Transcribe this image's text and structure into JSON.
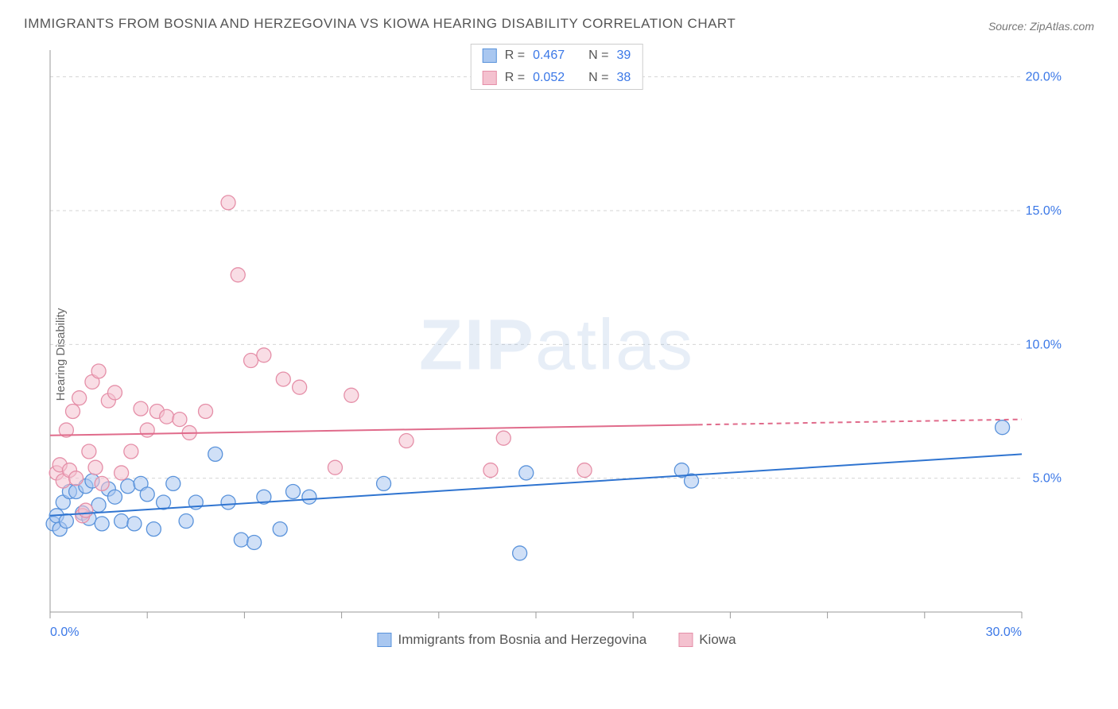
{
  "title": "IMMIGRANTS FROM BOSNIA AND HERZEGOVINA VS KIOWA HEARING DISABILITY CORRELATION CHART",
  "source": "Source: ZipAtlas.com",
  "watermark": {
    "bold": "ZIP",
    "rest": "atlas"
  },
  "ylabel": "Hearing Disability",
  "chart": {
    "type": "scatter",
    "background_color": "#ffffff",
    "grid_color": "#d5d5d5",
    "axis_color": "#999999",
    "xlim": [
      0,
      30
    ],
    "ylim": [
      0,
      21
    ],
    "x_ticks": [
      0,
      3,
      6,
      9,
      12,
      15,
      18,
      21,
      24,
      27,
      30
    ],
    "x_tick_labels": [
      "0.0%",
      "",
      "",
      "",
      "",
      "",
      "",
      "",
      "",
      "",
      "30.0%"
    ],
    "y_grid": [
      5,
      10,
      15,
      20
    ],
    "y_tick_labels": [
      "5.0%",
      "10.0%",
      "15.0%",
      "20.0%"
    ],
    "marker_radius": 9,
    "marker_opacity": 0.55,
    "line_width": 2,
    "series": [
      {
        "name": "Immigrants from Bosnia and Herzegovina",
        "color_fill": "#a9c7f0",
        "color_stroke": "#5a93db",
        "line_color": "#2f74d0",
        "R": "0.467",
        "N": "39",
        "trend": {
          "x1": 0,
          "y1": 3.6,
          "x2": 30,
          "y2": 5.9,
          "solid_until_x": 30
        },
        "points": [
          [
            0.1,
            3.3
          ],
          [
            0.2,
            3.6
          ],
          [
            0.3,
            3.1
          ],
          [
            0.4,
            4.1
          ],
          [
            0.5,
            3.4
          ],
          [
            0.6,
            4.5
          ],
          [
            0.8,
            4.5
          ],
          [
            1.0,
            3.7
          ],
          [
            1.1,
            4.7
          ],
          [
            1.2,
            3.5
          ],
          [
            1.3,
            4.9
          ],
          [
            1.5,
            4.0
          ],
          [
            1.6,
            3.3
          ],
          [
            1.8,
            4.6
          ],
          [
            2.0,
            4.3
          ],
          [
            2.2,
            3.4
          ],
          [
            2.4,
            4.7
          ],
          [
            2.6,
            3.3
          ],
          [
            2.8,
            4.8
          ],
          [
            3.0,
            4.4
          ],
          [
            3.2,
            3.1
          ],
          [
            3.5,
            4.1
          ],
          [
            3.8,
            4.8
          ],
          [
            4.2,
            3.4
          ],
          [
            4.5,
            4.1
          ],
          [
            5.1,
            5.9
          ],
          [
            5.5,
            4.1
          ],
          [
            5.9,
            2.7
          ],
          [
            6.3,
            2.6
          ],
          [
            6.6,
            4.3
          ],
          [
            7.1,
            3.1
          ],
          [
            7.5,
            4.5
          ],
          [
            8.0,
            4.3
          ],
          [
            10.3,
            4.8
          ],
          [
            14.5,
            2.2
          ],
          [
            14.7,
            5.2
          ],
          [
            19.5,
            5.3
          ],
          [
            19.8,
            4.9
          ],
          [
            29.4,
            6.9
          ]
        ]
      },
      {
        "name": "Kiowa",
        "color_fill": "#f4c1cf",
        "color_stroke": "#e58fa8",
        "line_color": "#e06b8b",
        "R": "0.052",
        "N": "38",
        "trend": {
          "x1": 0,
          "y1": 6.6,
          "x2": 30,
          "y2": 7.2,
          "solid_until_x": 20
        },
        "points": [
          [
            0.2,
            5.2
          ],
          [
            0.3,
            5.5
          ],
          [
            0.4,
            4.9
          ],
          [
            0.5,
            6.8
          ],
          [
            0.6,
            5.3
          ],
          [
            0.7,
            7.5
          ],
          [
            0.8,
            5.0
          ],
          [
            0.9,
            8.0
          ],
          [
            1.0,
            3.6
          ],
          [
            1.1,
            3.8
          ],
          [
            1.2,
            6.0
          ],
          [
            1.3,
            8.6
          ],
          [
            1.4,
            5.4
          ],
          [
            1.5,
            9.0
          ],
          [
            1.6,
            4.8
          ],
          [
            1.8,
            7.9
          ],
          [
            2.0,
            8.2
          ],
          [
            2.2,
            5.2
          ],
          [
            2.5,
            6.0
          ],
          [
            2.8,
            7.6
          ],
          [
            3.0,
            6.8
          ],
          [
            3.3,
            7.5
          ],
          [
            3.6,
            7.3
          ],
          [
            4.0,
            7.2
          ],
          [
            4.3,
            6.7
          ],
          [
            4.8,
            7.5
          ],
          [
            5.5,
            15.3
          ],
          [
            5.8,
            12.6
          ],
          [
            6.2,
            9.4
          ],
          [
            6.6,
            9.6
          ],
          [
            7.2,
            8.7
          ],
          [
            7.7,
            8.4
          ],
          [
            8.8,
            5.4
          ],
          [
            9.3,
            8.1
          ],
          [
            11.0,
            6.4
          ],
          [
            13.6,
            5.3
          ],
          [
            14.0,
            6.5
          ],
          [
            16.5,
            5.3
          ]
        ]
      }
    ]
  },
  "stats_legend": {
    "rows": [
      {
        "color_fill": "#a9c7f0",
        "color_stroke": "#5a93db",
        "r_label": "R =",
        "r_val": "0.467",
        "n_label": "N =",
        "n_val": "39"
      },
      {
        "color_fill": "#f4c1cf",
        "color_stroke": "#e58fa8",
        "r_label": "R =",
        "r_val": "0.052",
        "n_label": "N =",
        "n_val": "38"
      }
    ]
  },
  "bottom_legend": {
    "items": [
      {
        "color_fill": "#a9c7f0",
        "color_stroke": "#5a93db",
        "label": "Immigrants from Bosnia and Herzegovina"
      },
      {
        "color_fill": "#f4c1cf",
        "color_stroke": "#e58fa8",
        "label": "Kiowa"
      }
    ]
  }
}
